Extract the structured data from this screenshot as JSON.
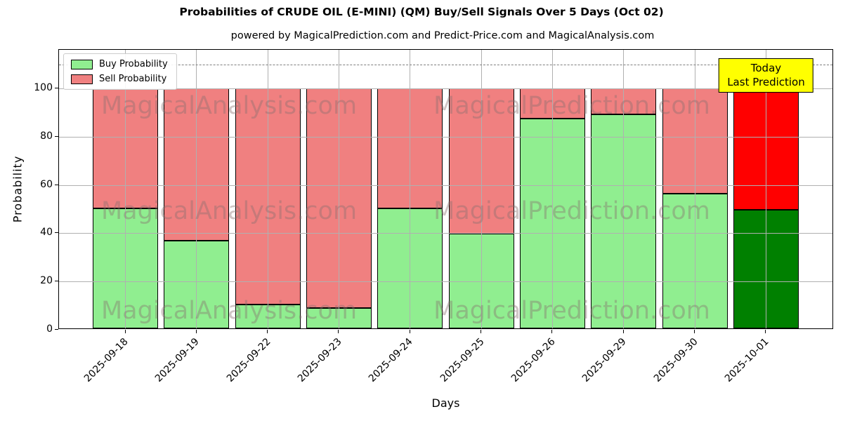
{
  "chart_data": {
    "type": "bar",
    "stacked": true,
    "title": "Probabilities of CRUDE OIL (E-MINI) (QM) Buy/Sell Signals Over 5 Days (Oct 02)",
    "subtitle": "powered by MagicalPrediction.com and Predict-Price.com and MagicalAnalysis.com",
    "xlabel": "Days",
    "ylabel": "Probability",
    "categories": [
      "2025-09-18",
      "2025-09-19",
      "2025-09-22",
      "2025-09-23",
      "2025-09-24",
      "2025-09-25",
      "2025-09-26",
      "2025-09-29",
      "2025-09-30",
      "2025-10-01"
    ],
    "series": [
      {
        "name": "Buy Probability",
        "color": "#90ee90",
        "today_color": "#008000",
        "values": [
          50,
          36.5,
          10,
          8.5,
          50,
          39.5,
          87.5,
          89,
          56,
          49.5
        ]
      },
      {
        "name": "Sell Probability",
        "color": "#f08080",
        "today_color": "#ff0000",
        "values": [
          50,
          63.5,
          90,
          91.5,
          50,
          60.5,
          12.5,
          11,
          44,
          50.5
        ]
      }
    ],
    "today_index": 9,
    "ylim": [
      0,
      116
    ],
    "yticks": [
      0,
      20,
      40,
      60,
      80,
      100
    ],
    "dashed_line_y": 110,
    "grid": true,
    "legend_position": "upper-left",
    "bar_edge_color": "#000000",
    "annotation": {
      "lines": [
        "Today",
        "Last Prediction"
      ],
      "bg_color": "#ffff00"
    },
    "watermark_left": "MagicalAnalysis.com",
    "watermark_right": "MagicalPrediction.com"
  }
}
